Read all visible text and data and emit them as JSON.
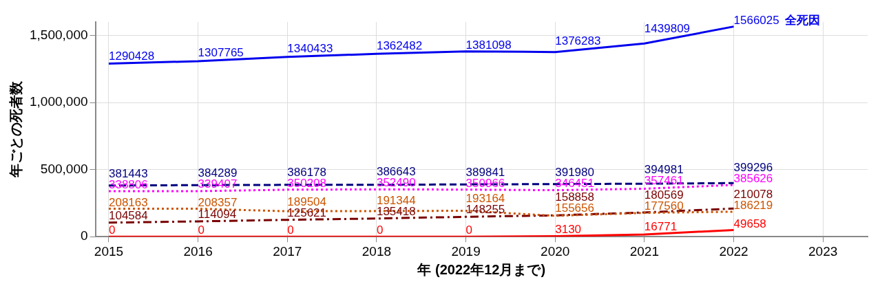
{
  "chart_data": {
    "type": "line",
    "xlabel": "年 (2022年12月まで)",
    "ylabel": "年ごとの死者数",
    "x": [
      2015,
      2016,
      2017,
      2018,
      2019,
      2020,
      2021,
      2022
    ],
    "xlim": [
      2014.85,
      2023.5
    ],
    "xticks": [
      2015,
      2016,
      2017,
      2018,
      2019,
      2020,
      2021,
      2022,
      2023
    ],
    "ylim": [
      0,
      1600000
    ],
    "yticks": [
      {
        "value": 0,
        "label": "0"
      },
      {
        "value": 500000,
        "label": "500,000"
      },
      {
        "value": 1000000,
        "label": "1,000,000"
      },
      {
        "value": 1500000,
        "label": "1,500,000"
      }
    ],
    "grid": true,
    "legend": false,
    "data_labels": true,
    "marker": "none",
    "series": [
      {
        "name": "全死因",
        "color": "#0000ee",
        "line_style": "solid",
        "values": [
          1290428,
          1307765,
          1340433,
          1362482,
          1381098,
          1376283,
          1439809,
          1566025
        ]
      },
      {
        "color": "#000080",
        "line_style": "dashed",
        "values": [
          381443,
          384289,
          386178,
          386643,
          389841,
          391980,
          394981,
          399296
        ]
      },
      {
        "color": "#ff00ff",
        "line_style": "dotted",
        "values": [
          338806,
          339407,
          350208,
          352490,
          350966,
          346451,
          357461,
          385626
        ]
      },
      {
        "color": "#cc5500",
        "line_style": "dotted",
        "values": [
          208163,
          208357,
          189504,
          191344,
          193164,
          155656,
          177560,
          186219
        ]
      },
      {
        "color": "#7a0000",
        "line_style": "dashdot",
        "values": [
          104584,
          114094,
          125621,
          135418,
          148255,
          158858,
          180569,
          210078
        ]
      },
      {
        "color": "#ff0000",
        "line_style": "solid",
        "values": [
          0,
          0,
          0,
          0,
          0,
          3130,
          16771,
          49658
        ]
      }
    ]
  }
}
